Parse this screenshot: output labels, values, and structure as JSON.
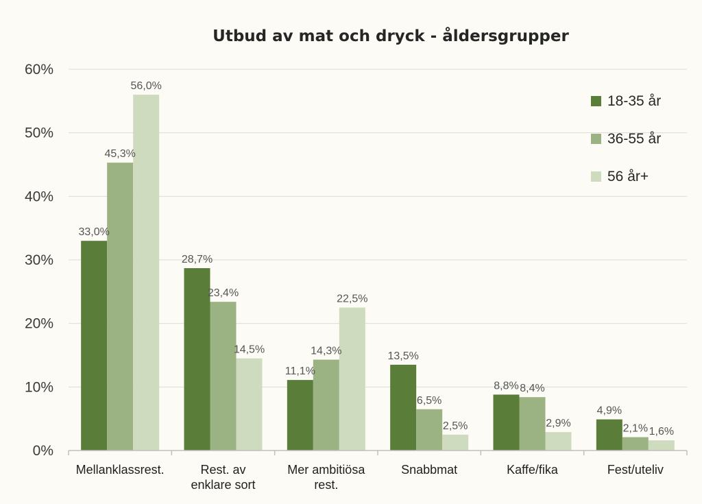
{
  "chart_data": {
    "type": "bar",
    "title": "Utbud av mat och dryck - åldersgrupper",
    "xlabel": "",
    "ylabel": "",
    "ylim": [
      0,
      60
    ],
    "yticks": [
      "0%",
      "10%",
      "20%",
      "30%",
      "40%",
      "50%",
      "60%"
    ],
    "grid": true,
    "legend_position": "top-right",
    "categories": [
      [
        "Mellanklassrest."
      ],
      [
        "Rest. av",
        "enklare sort"
      ],
      [
        "Mer ambitiösa",
        "rest."
      ],
      [
        "Snabbmat"
      ],
      [
        "Kaffe/fika"
      ],
      [
        "Fest/uteliv"
      ]
    ],
    "series": [
      {
        "name": "18-35 år",
        "color": "#5a7d3a",
        "values": [
          33.0,
          28.7,
          11.1,
          13.5,
          8.8,
          4.9
        ],
        "labels": [
          "33,0%",
          "28,7%",
          "11,1%",
          "13,5%",
          "8,8%",
          "4,9%"
        ]
      },
      {
        "name": "36-55 år",
        "color": "#9bb283",
        "values": [
          45.3,
          23.4,
          14.3,
          6.5,
          8.4,
          2.1
        ],
        "labels": [
          "45,3%",
          "23,4%",
          "14,3%",
          "6,5%",
          "8,4%",
          "2,1%"
        ]
      },
      {
        "name": "56 år+",
        "color": "#cfdbbe",
        "values": [
          56.0,
          14.5,
          22.5,
          2.5,
          2.9,
          1.6
        ],
        "labels": [
          "56,0%",
          "14,5%",
          "22,5%",
          "2,5%",
          "2,9%",
          "1,6%"
        ]
      }
    ]
  }
}
